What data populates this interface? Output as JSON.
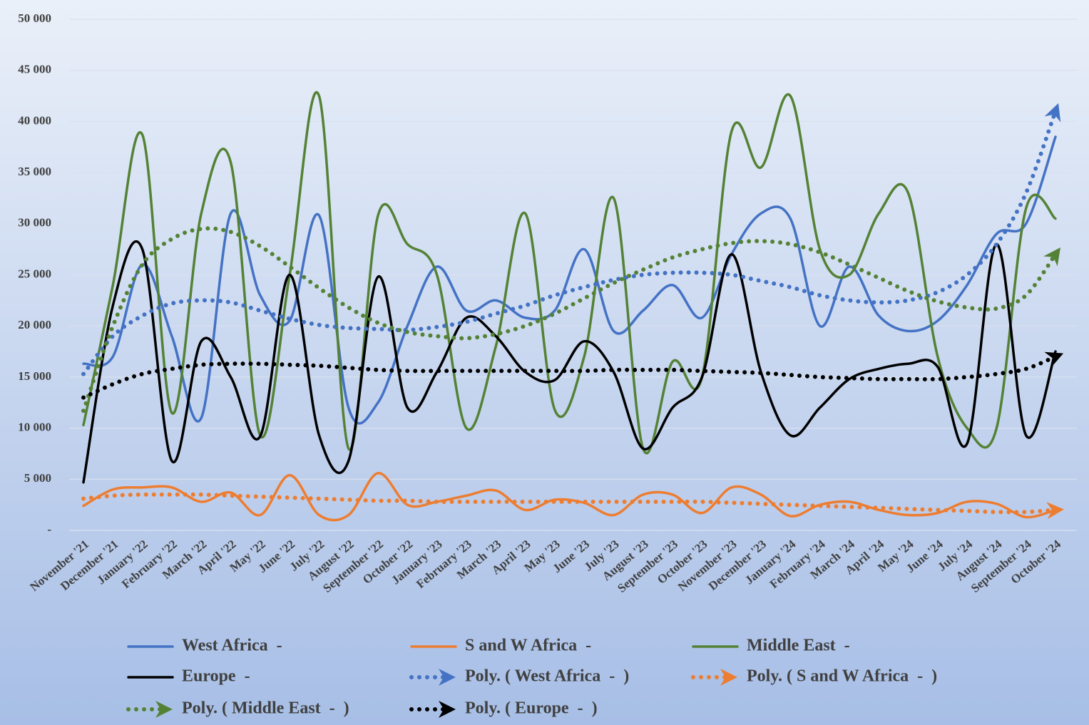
{
  "chart_data": {
    "type": "line",
    "categories": [
      "November '21",
      "December '21",
      "January '22",
      "February '22",
      "March '22",
      "April '22",
      "May '22",
      "June '22",
      "July '22",
      "August '22",
      "September '22",
      "October '22",
      "January '23",
      "February '23",
      "March '23",
      "April '23",
      "May '23",
      "June '23",
      "July '23",
      "August '23",
      "September '23",
      "October '23",
      "November '23",
      "December '23",
      "January '24",
      "February '24",
      "March '24",
      "April '24",
      "May '24",
      "June '24",
      "July '24",
      "August '24",
      "September '24",
      "October '24"
    ],
    "series": [
      {
        "name": "West Africa  -",
        "color": "#4472c4",
        "style": "solid",
        "values": [
          16300,
          17000,
          26000,
          19000,
          11000,
          31000,
          23000,
          20500,
          30800,
          12000,
          12500,
          20000,
          25800,
          21500,
          22500,
          20800,
          21500,
          27500,
          19500,
          21500,
          24000,
          20800,
          27000,
          31000,
          30500,
          20000,
          25800,
          21000,
          19500,
          20500,
          24000,
          29000,
          30000,
          38500
        ]
      },
      {
        "name": "S and W Africa  -",
        "color": "#ed7d31",
        "style": "solid",
        "values": [
          2400,
          4000,
          4200,
          4200,
          2800,
          3700,
          1500,
          5400,
          1500,
          1500,
          5600,
          2500,
          2800,
          3400,
          3900,
          2000,
          3000,
          2700,
          1500,
          3500,
          3500,
          1700,
          4200,
          3500,
          1400,
          2500,
          2800,
          2000,
          1500,
          1700,
          2800,
          2600,
          1300,
          2000
        ]
      },
      {
        "name": "Middle East  -",
        "color": "#548235",
        "style": "solid",
        "values": [
          10300,
          24000,
          38700,
          11500,
          31000,
          36000,
          9300,
          25000,
          42500,
          8000,
          30800,
          28000,
          25000,
          10000,
          18000,
          31000,
          11800,
          17000,
          32500,
          8000,
          16500,
          15000,
          39000,
          35500,
          42500,
          27500,
          25000,
          31000,
          33000,
          17000,
          10000,
          10000,
          31500,
          30500
        ]
      },
      {
        "name": "Europe  -",
        "color": "#000000",
        "style": "solid",
        "values": [
          4700,
          22000,
          27500,
          6800,
          18500,
          15000,
          9200,
          25000,
          9300,
          6800,
          24800,
          12000,
          15500,
          20800,
          19000,
          15500,
          14700,
          18500,
          15500,
          8000,
          12000,
          15000,
          27000,
          15500,
          9300,
          12000,
          14800,
          15800,
          16300,
          16000,
          8500,
          28000,
          9300,
          17500
        ]
      },
      {
        "name": "Poly. ( West Africa  -  )",
        "color": "#4472c4",
        "style": "dotted",
        "values": [
          15300,
          19000,
          21000,
          22200,
          22500,
          22300,
          21500,
          20700,
          20100,
          19800,
          19700,
          19600,
          19900,
          20400,
          21200,
          22000,
          23000,
          23800,
          24500,
          25000,
          25200,
          25200,
          25000,
          24400,
          23800,
          23000,
          22500,
          22300,
          22500,
          23300,
          25000,
          28000,
          33000,
          41000
        ]
      },
      {
        "name": "Poly. ( S and W Africa  -  )",
        "color": "#ed7d31",
        "style": "dotted",
        "values": [
          3100,
          3400,
          3500,
          3500,
          3500,
          3400,
          3300,
          3200,
          3100,
          3000,
          2900,
          2900,
          2800,
          2800,
          2800,
          2800,
          2800,
          2800,
          2800,
          2800,
          2800,
          2800,
          2700,
          2600,
          2500,
          2400,
          2300,
          2200,
          2100,
          2000,
          1900,
          1800,
          1800,
          2000
        ]
      },
      {
        "name": "Poly. ( Middle East  -  )",
        "color": "#548235",
        "style": "dotted",
        "values": [
          11700,
          20000,
          26000,
          28500,
          29500,
          29200,
          27800,
          25800,
          23700,
          21800,
          20300,
          19400,
          19000,
          18800,
          19200,
          20000,
          21200,
          22700,
          24200,
          25500,
          26700,
          27500,
          28100,
          28300,
          28000,
          27200,
          26000,
          24700,
          23400,
          22400,
          21800,
          21700,
          23000,
          27000
        ]
      },
      {
        "name": "Poly. ( Europe  -  )",
        "color": "#000000",
        "style": "dotted",
        "values": [
          13000,
          14300,
          15300,
          15800,
          16200,
          16300,
          16300,
          16200,
          16100,
          15900,
          15700,
          15600,
          15600,
          15600,
          15600,
          15600,
          15600,
          15600,
          15700,
          15700,
          15700,
          15600,
          15500,
          15400,
          15200,
          15000,
          14900,
          14800,
          14800,
          14800,
          15000,
          15300,
          15800,
          17000
        ]
      }
    ],
    "ylim": [
      0,
      50000
    ],
    "yticks": [
      {
        "value": 0,
        "label": "-"
      },
      {
        "value": 5000,
        "label": "5 000"
      },
      {
        "value": 10000,
        "label": "10 000"
      },
      {
        "value": 15000,
        "label": "15 000"
      },
      {
        "value": 20000,
        "label": "20 000"
      },
      {
        "value": 25000,
        "label": "25 000"
      },
      {
        "value": 30000,
        "label": "30 000"
      },
      {
        "value": 35000,
        "label": "35 000"
      },
      {
        "value": 40000,
        "label": "40 000"
      },
      {
        "value": 45000,
        "label": "45 000"
      },
      {
        "value": 50000,
        "label": "50 000"
      }
    ],
    "grid": true,
    "legend": "bottom"
  }
}
